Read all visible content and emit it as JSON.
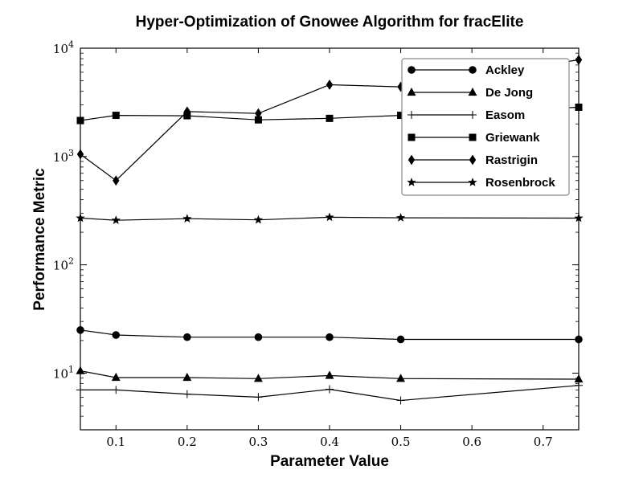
{
  "chart_data": {
    "type": "line",
    "title": "Hyper-Optimization of Gnowee Algorithm for fracElite",
    "xlabel": "Parameter Value",
    "ylabel": "Performance Metric",
    "xlim": [
      0.05,
      0.75
    ],
    "ylim": [
      3,
      10000
    ],
    "yscale": "log",
    "grid": false,
    "legend_position": "top-right",
    "x": [
      0.05,
      0.1,
      0.2,
      0.3,
      0.4,
      0.5,
      0.75
    ],
    "x_ticks": [
      "0.1",
      "0.2",
      "0.3",
      "0.4",
      "0.5",
      "0.6",
      "0.7"
    ],
    "x_tick_values": [
      0.1,
      0.2,
      0.3,
      0.4,
      0.5,
      0.6,
      0.7
    ],
    "y_tick_values": [
      10,
      100,
      1000,
      10000
    ],
    "y_tick_exponents": [
      "1",
      "2",
      "3",
      "4"
    ],
    "series": [
      {
        "name": "Ackley",
        "marker": "circle",
        "values": [
          25,
          22.5,
          21.5,
          21.5,
          21.5,
          20.5,
          20.5
        ]
      },
      {
        "name": "De Jong",
        "marker": "triangle",
        "values": [
          10.5,
          9.1,
          9.1,
          8.9,
          9.5,
          8.9,
          8.8
        ]
      },
      {
        "name": "Easom",
        "marker": "plus",
        "values": [
          7.0,
          7.0,
          6.4,
          6.0,
          7.1,
          5.6,
          7.7
        ]
      },
      {
        "name": "Griewank",
        "marker": "square",
        "values": [
          2150,
          2400,
          2380,
          2180,
          2250,
          2400,
          2850
        ]
      },
      {
        "name": "Rastrigin",
        "marker": "diamond",
        "values": [
          1050,
          600,
          2600,
          2500,
          4600,
          4400,
          7800
        ]
      },
      {
        "name": "Rosenbrock",
        "marker": "star",
        "values": [
          270,
          258,
          267,
          260,
          275,
          272,
          270
        ]
      }
    ]
  }
}
